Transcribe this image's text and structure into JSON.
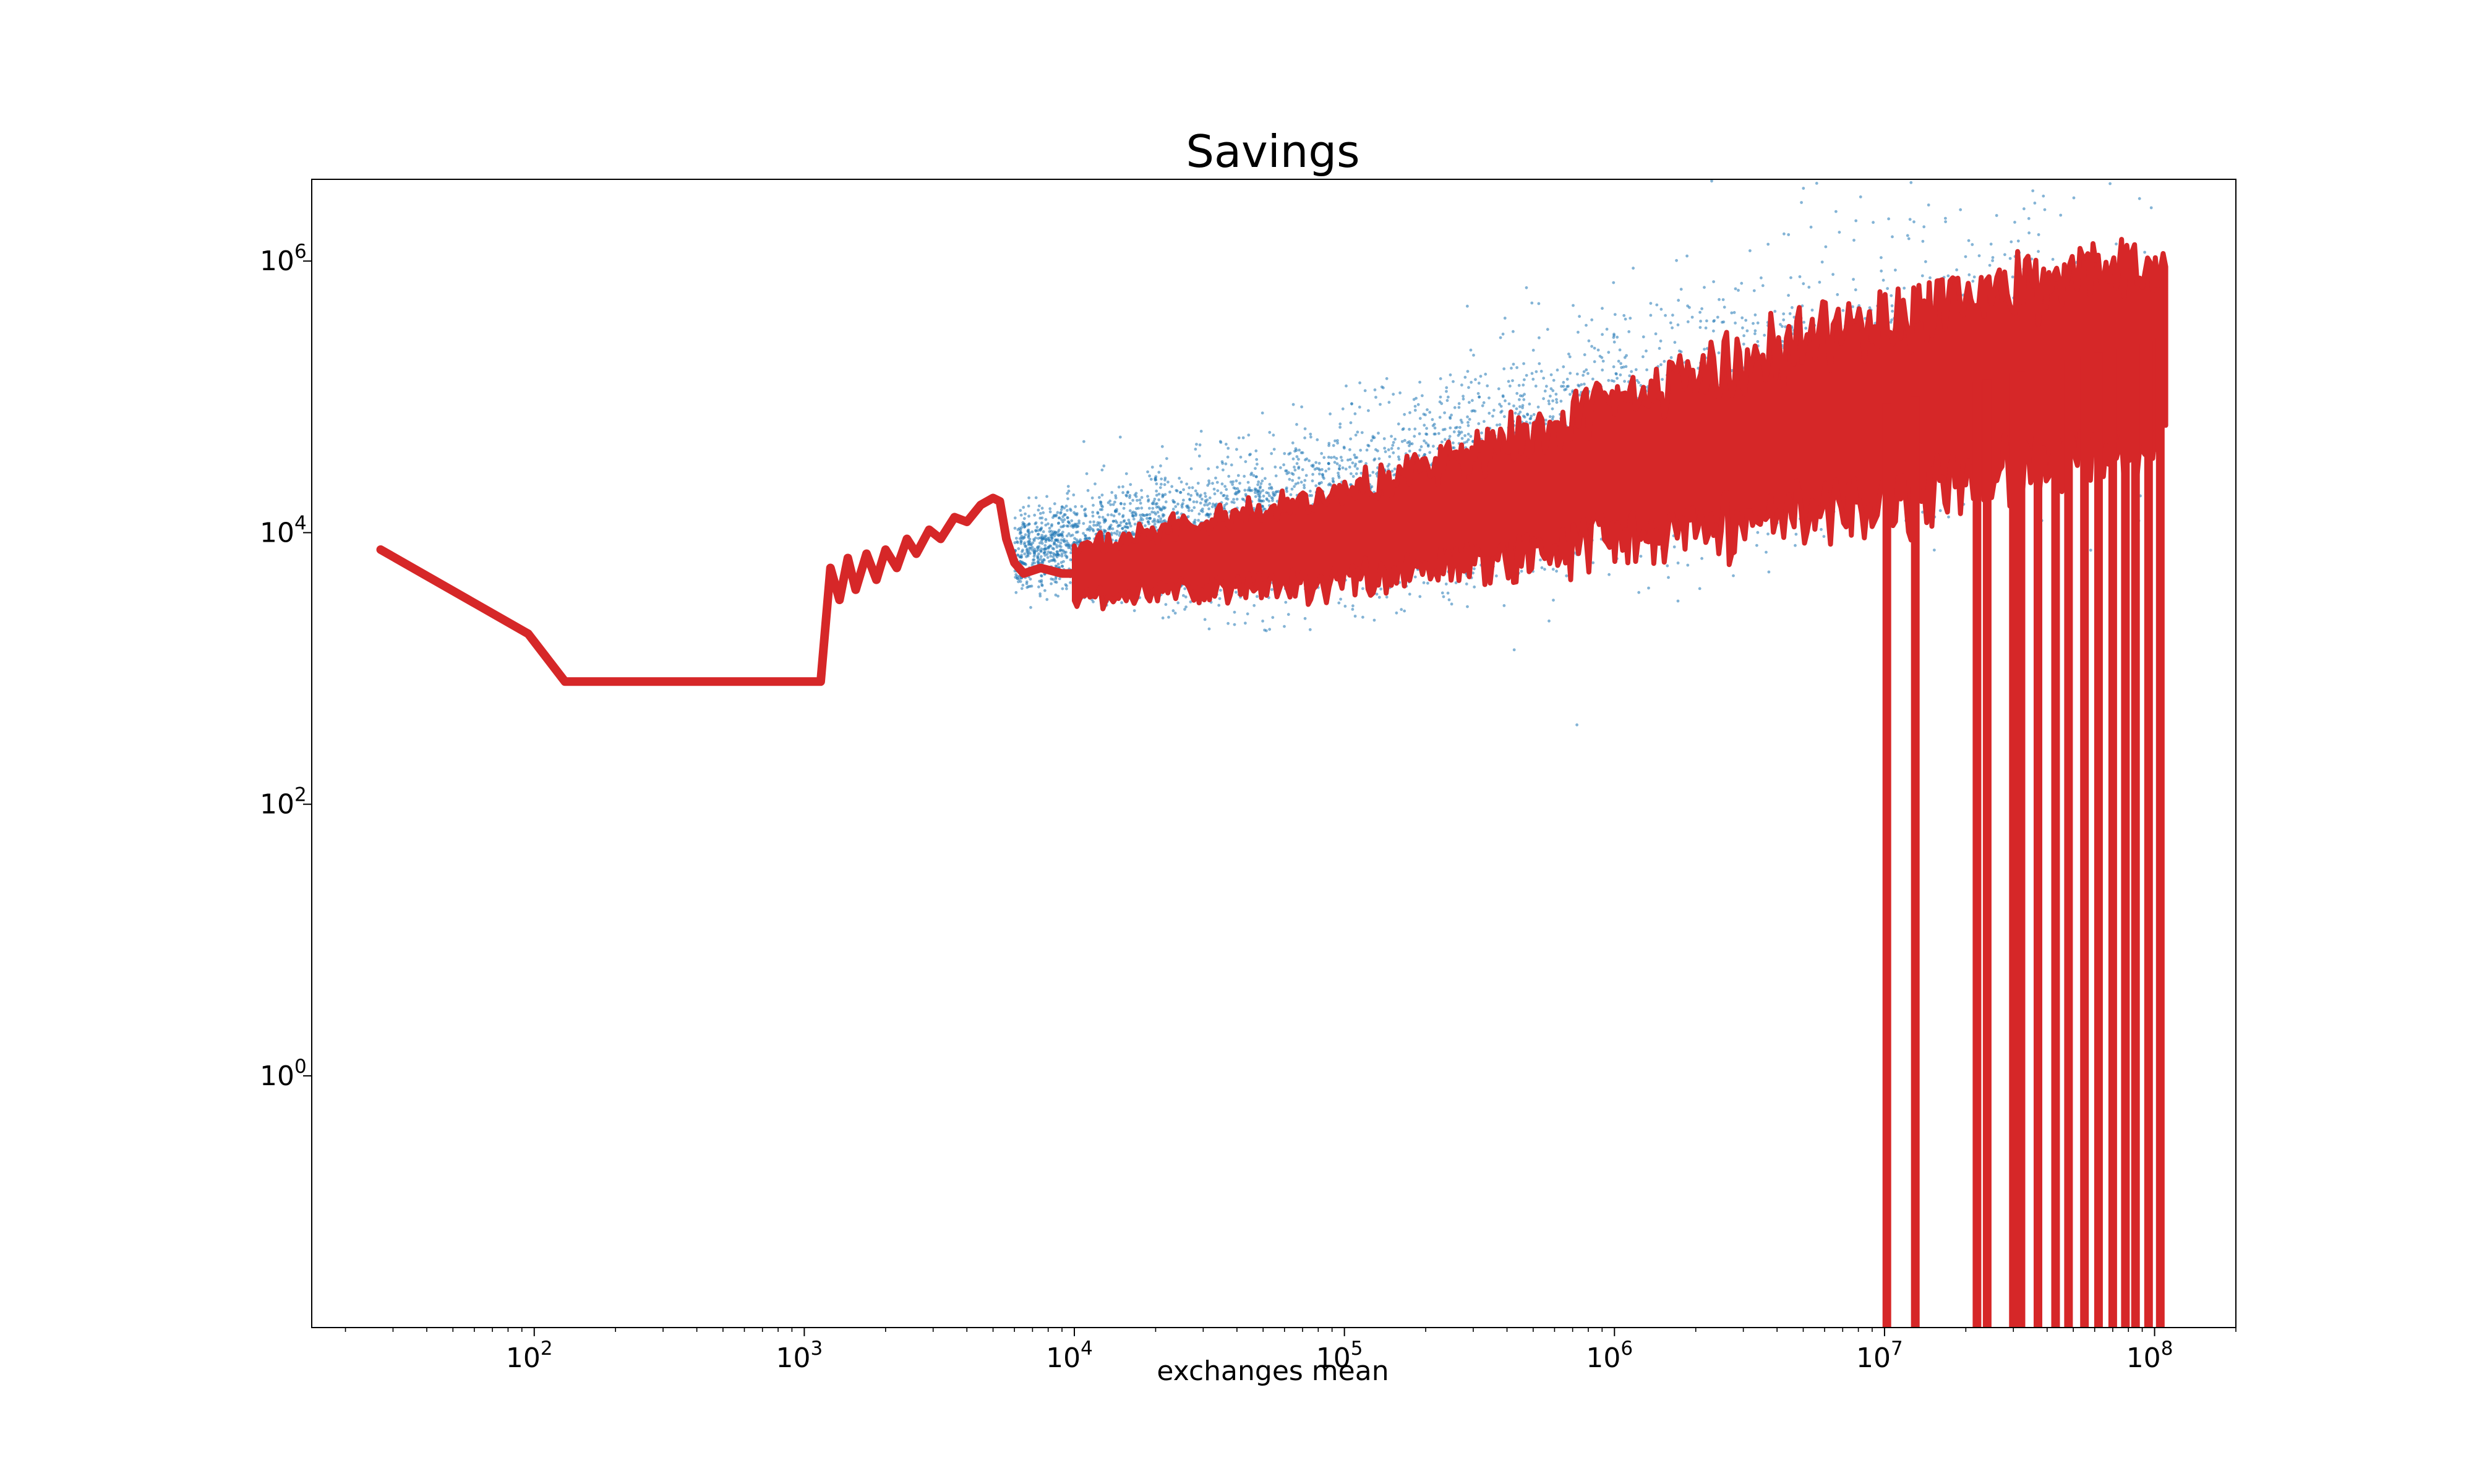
{
  "chart_data": {
    "type": "scatter",
    "title": "Savings",
    "xlabel": "exchanges mean",
    "ylabel": "",
    "xscale": "log",
    "yscale": "log",
    "xlim": [
      15,
      200000000
    ],
    "ylim": [
      0.014,
      4000000
    ],
    "grid": false,
    "legend": "none",
    "xticks": [
      {
        "value": 100,
        "base": "10",
        "exp": "2"
      },
      {
        "value": 1000,
        "base": "10",
        "exp": "3"
      },
      {
        "value": 10000,
        "base": "10",
        "exp": "4"
      },
      {
        "value": 100000,
        "base": "10",
        "exp": "5"
      },
      {
        "value": 1000000,
        "base": "10",
        "exp": "6"
      },
      {
        "value": 10000000,
        "base": "10",
        "exp": "7"
      },
      {
        "value": 100000000,
        "base": "10",
        "exp": "8"
      }
    ],
    "yticks": [
      {
        "value": 1,
        "base": "10",
        "exp": "0"
      },
      {
        "value": 100,
        "base": "10",
        "exp": "2"
      },
      {
        "value": 10000,
        "base": "10",
        "exp": "4"
      },
      {
        "value": 1000000,
        "base": "10",
        "exp": "6"
      }
    ],
    "scatter_series": {
      "color": "#1f77b4",
      "band_center": [
        [
          6000,
          7000
        ],
        [
          100000,
          14000
        ],
        [
          1000000,
          50000
        ],
        [
          10000000,
          150000
        ],
        [
          110000000,
          300000
        ]
      ],
      "band_spread_decades": [
        [
          6000,
          0.25
        ],
        [
          100000,
          0.6
        ],
        [
          1000000,
          0.8
        ],
        [
          10000000,
          1.0
        ],
        [
          110000000,
          1.1
        ]
      ],
      "x_range": [
        6000,
        110000000
      ]
    },
    "line_series": {
      "color": "#d62728",
      "points": [
        [
          27,
          7500
        ],
        [
          95,
          1800
        ],
        [
          130,
          800
        ],
        [
          300,
          800
        ],
        [
          1000,
          800
        ],
        [
          1150,
          800
        ],
        [
          1250,
          5500
        ],
        [
          1350,
          3200
        ],
        [
          1450,
          6500
        ],
        [
          1550,
          3800
        ],
        [
          1700,
          7000
        ],
        [
          1850,
          4500
        ],
        [
          2000,
          7500
        ],
        [
          2200,
          5500
        ],
        [
          2400,
          9000
        ],
        [
          2600,
          7000
        ],
        [
          2900,
          10500
        ],
        [
          3200,
          9000
        ],
        [
          3600,
          13000
        ],
        [
          4000,
          12000
        ],
        [
          4500,
          16000
        ],
        [
          5000,
          18000
        ],
        [
          5300,
          17000
        ],
        [
          5600,
          9000
        ],
        [
          6000,
          6000
        ],
        [
          6500,
          5000
        ],
        [
          7500,
          5500
        ],
        [
          9000,
          5000
        ],
        [
          10000,
          5000
        ]
      ],
      "noisy_segment": {
        "x_range": [
          10000,
          110000000
        ],
        "center": [
          [
            10000,
            5000
          ],
          [
            100000,
            9000
          ],
          [
            1000000,
            28000
          ],
          [
            10000000,
            80000
          ],
          [
            110000000,
            250000
          ]
        ],
        "half_band_decades": [
          [
            10000,
            0.2
          ],
          [
            100000,
            0.35
          ],
          [
            1000000,
            0.55
          ],
          [
            10000000,
            0.75
          ],
          [
            110000000,
            0.7
          ]
        ]
      },
      "spikes_to_bottom_x": [
        10200000,
        13000000,
        22000000,
        24000000,
        30000000,
        32000000,
        37000000,
        43000000,
        48000000,
        55000000,
        62000000,
        70000000,
        78000000,
        85000000,
        95000000,
        105000000
      ]
    }
  }
}
